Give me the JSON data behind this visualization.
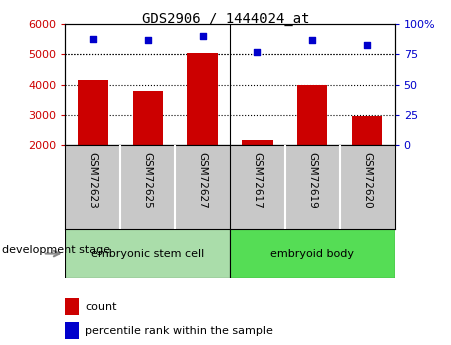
{
  "title": "GDS2906 / 1444024_at",
  "samples": [
    "GSM72623",
    "GSM72625",
    "GSM72627",
    "GSM72617",
    "GSM72619",
    "GSM72620"
  ],
  "counts": [
    4150,
    3800,
    5050,
    2150,
    4000,
    2950
  ],
  "percentile_ranks": [
    88,
    87,
    90,
    77,
    87,
    83
  ],
  "ylim_left": [
    2000,
    6000
  ],
  "ylim_right": [
    0,
    100
  ],
  "yticks_left": [
    2000,
    3000,
    4000,
    5000,
    6000
  ],
  "yticks_right": [
    0,
    25,
    50,
    75,
    100
  ],
  "bar_color": "#cc0000",
  "dot_color": "#0000cc",
  "groups": [
    {
      "label": "embryonic stem cell",
      "start": 0,
      "end": 3,
      "color": "#aaddaa"
    },
    {
      "label": "embryoid body",
      "start": 3,
      "end": 6,
      "color": "#55dd55"
    }
  ],
  "group_label": "development stage",
  "legend_count_label": "count",
  "legend_pct_label": "percentile rank within the sample",
  "tick_label_color_left": "#cc0000",
  "tick_label_color_right": "#0000cc",
  "background_color": "#ffffff",
  "plot_bg_color": "#ffffff",
  "dotted_grid_color": "#000000",
  "base_value": 2000,
  "label_bg_color": "#c8c8c8",
  "label_divider_color": "#ffffff",
  "title_fontsize": 10
}
